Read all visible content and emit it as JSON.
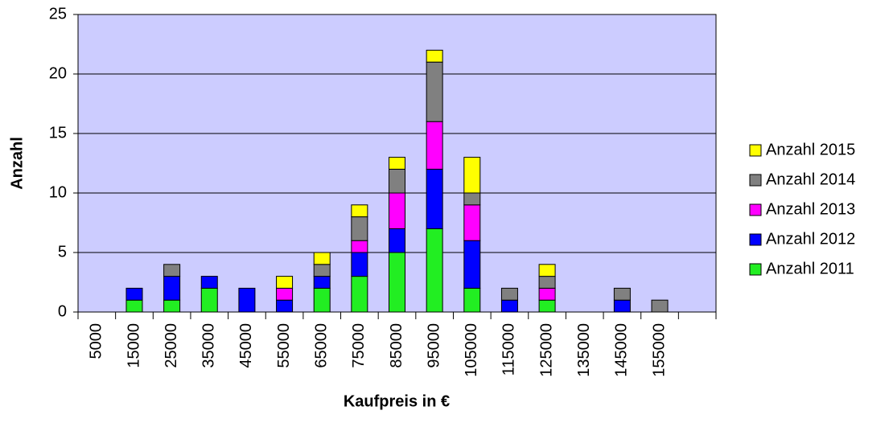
{
  "chart_data": {
    "type": "stacked_bar",
    "x_label": "Kaufpreis in €",
    "y_label": "Anzahl",
    "categories": [
      "5000",
      "15000",
      "25000",
      "35000",
      "45000",
      "55000",
      "65000",
      "75000",
      "85000",
      "95000",
      "105000",
      "115000",
      "125000",
      "135000",
      "145000",
      "155000",
      null
    ],
    "series": [
      {
        "name": "Anzahl 2011",
        "color": "#22ee22",
        "values": [
          0,
          1,
          1,
          2,
          0,
          0,
          2,
          3,
          5,
          7,
          2,
          0,
          1,
          0,
          0,
          0,
          0
        ]
      },
      {
        "name": "Anzahl 2012",
        "color": "#0000ff",
        "values": [
          0,
          1,
          2,
          1,
          2,
          1,
          1,
          2,
          2,
          5,
          4,
          1,
          0,
          0,
          1,
          0,
          0
        ]
      },
      {
        "name": "Anzahl 2013",
        "color": "#ff00ff",
        "values": [
          0,
          0,
          0,
          0,
          0,
          1,
          0,
          1,
          3,
          4,
          3,
          0,
          1,
          0,
          0,
          0,
          0
        ]
      },
      {
        "name": "Anzahl 2014",
        "color": "#808080",
        "values": [
          0,
          0,
          1,
          0,
          0,
          0,
          1,
          2,
          2,
          5,
          1,
          1,
          1,
          0,
          1,
          1,
          0
        ]
      },
      {
        "name": "Anzahl 2015",
        "color": "#ffff00",
        "values": [
          0,
          0,
          0,
          0,
          0,
          1,
          1,
          1,
          1,
          1,
          3,
          0,
          1,
          0,
          0,
          0,
          0
        ]
      }
    ],
    "ylim": [
      0,
      25
    ],
    "yticks": [
      0,
      5,
      10,
      15,
      20,
      25
    ],
    "grid": true,
    "legend": "right"
  }
}
